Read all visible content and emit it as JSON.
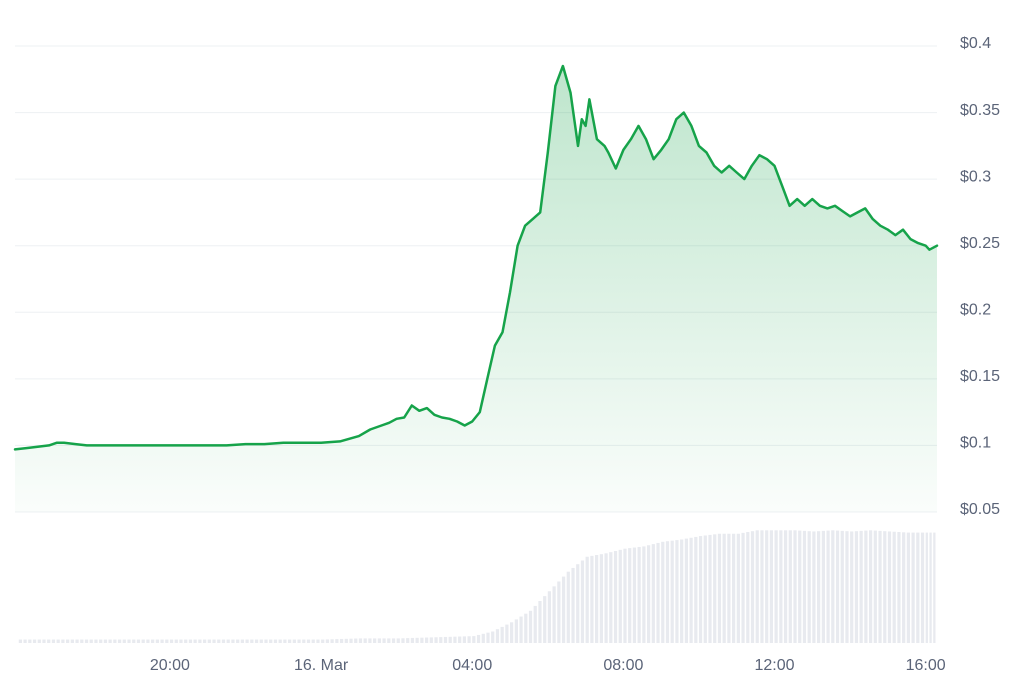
{
  "chart_data": {
    "type": "line",
    "title": "",
    "xlabel": "",
    "ylabel": "",
    "x_tick_labels": [
      "20:00",
      "16. Mar",
      "04:00",
      "08:00",
      "12:00",
      "16:00"
    ],
    "x_tick_hours": [
      20,
      24,
      28,
      32,
      36,
      40
    ],
    "x_range_hours": [
      15.9,
      40.3
    ],
    "y_tick_labels": [
      "$0.4",
      "$0.35",
      "$0.3",
      "$0.25",
      "$0.2",
      "$0.15",
      "$0.1",
      "$0.05"
    ],
    "y_tick_values": [
      0.4,
      0.35,
      0.3,
      0.25,
      0.2,
      0.15,
      0.1,
      0.05
    ],
    "ylim": [
      0.05,
      0.4
    ],
    "grid": true,
    "colors": {
      "line": "#16a34a",
      "fill": "#16a34a",
      "volume": "#e8eaef",
      "grid": "#edf0f3",
      "text": "#5b6478"
    },
    "series": [
      {
        "values_x_hours": [
          15.9,
          16.2,
          16.5,
          16.8,
          17.0,
          17.2,
          17.5,
          17.8,
          18.0,
          18.3,
          18.6,
          19.0,
          19.5,
          20.0,
          20.5,
          21.0,
          21.5,
          22.0,
          22.5,
          23.0,
          23.5,
          24.0,
          24.5,
          25.0,
          25.3,
          25.6,
          25.8,
          26.0,
          26.2,
          26.4,
          26.6,
          26.8,
          27.0,
          27.2,
          27.4,
          27.6,
          27.8,
          28.0,
          28.2,
          28.4,
          28.6,
          28.8,
          29.0,
          29.2,
          29.4,
          29.6,
          29.8,
          30.0,
          30.2,
          30.4,
          30.6,
          30.8,
          30.9,
          31.0,
          31.1,
          31.3,
          31.5,
          31.6,
          31.8,
          32.0,
          32.2,
          32.4,
          32.6,
          32.8,
          33.0,
          33.2,
          33.4,
          33.6,
          33.8,
          34.0,
          34.2,
          34.4,
          34.6,
          34.8,
          35.0,
          35.2,
          35.4,
          35.6,
          35.8,
          36.0,
          36.2,
          36.4,
          36.6,
          36.8,
          37.0,
          37.2,
          37.4,
          37.6,
          37.8,
          38.0,
          38.2,
          38.4,
          38.6,
          38.8,
          39.0,
          39.2,
          39.4,
          39.6,
          39.8,
          40.0,
          40.1,
          40.3
        ],
        "values": [
          0.097,
          0.098,
          0.099,
          0.1,
          0.102,
          0.102,
          0.101,
          0.1,
          0.1,
          0.1,
          0.1,
          0.1,
          0.1,
          0.1,
          0.1,
          0.1,
          0.1,
          0.101,
          0.101,
          0.102,
          0.102,
          0.102,
          0.103,
          0.107,
          0.112,
          0.115,
          0.117,
          0.12,
          0.121,
          0.13,
          0.126,
          0.128,
          0.123,
          0.121,
          0.12,
          0.118,
          0.115,
          0.118,
          0.125,
          0.15,
          0.175,
          0.185,
          0.215,
          0.25,
          0.265,
          0.27,
          0.275,
          0.32,
          0.37,
          0.385,
          0.365,
          0.325,
          0.345,
          0.34,
          0.36,
          0.33,
          0.325,
          0.32,
          0.308,
          0.322,
          0.33,
          0.34,
          0.33,
          0.315,
          0.322,
          0.33,
          0.345,
          0.35,
          0.34,
          0.325,
          0.32,
          0.31,
          0.305,
          0.31,
          0.305,
          0.3,
          0.31,
          0.318,
          0.315,
          0.31,
          0.295,
          0.28,
          0.285,
          0.28,
          0.285,
          0.28,
          0.278,
          0.28,
          0.276,
          0.272,
          0.275,
          0.278,
          0.27,
          0.265,
          0.262,
          0.258,
          0.262,
          0.255,
          0.252,
          0.25,
          0.247,
          0.25
        ]
      }
    ],
    "volume": {
      "x_hours": [
        16,
        17,
        18,
        19,
        20,
        21,
        22,
        23,
        24,
        25,
        26,
        27,
        28,
        28.5,
        29,
        29.5,
        30,
        30.5,
        31,
        31.5,
        32,
        32.5,
        33,
        33.5,
        34,
        34.5,
        35,
        35.5,
        36,
        36.5,
        37,
        37.5,
        38,
        38.5,
        39,
        39.5,
        40,
        40.2
      ],
      "values": [
        0.03,
        0.03,
        0.03,
        0.03,
        0.03,
        0.03,
        0.03,
        0.03,
        0.03,
        0.04,
        0.04,
        0.05,
        0.06,
        0.1,
        0.18,
        0.28,
        0.45,
        0.62,
        0.75,
        0.78,
        0.82,
        0.84,
        0.88,
        0.9,
        0.93,
        0.95,
        0.95,
        0.98,
        0.98,
        0.98,
        0.97,
        0.98,
        0.97,
        0.98,
        0.97,
        0.96,
        0.96,
        0.96
      ]
    }
  }
}
